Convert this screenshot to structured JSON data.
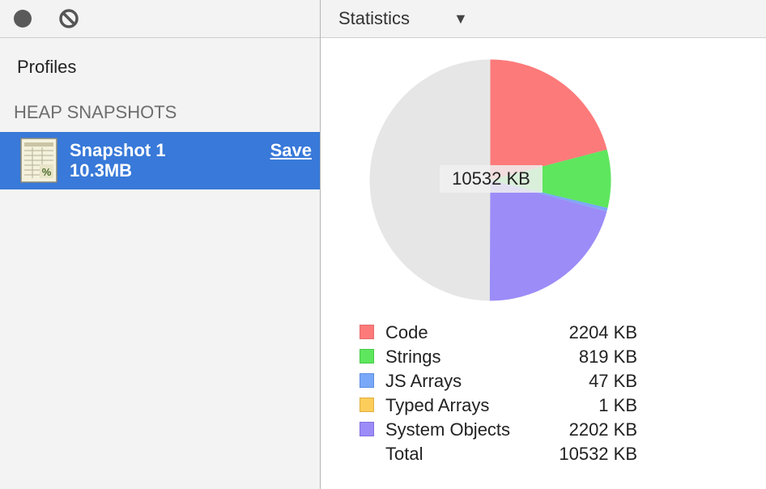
{
  "left_panel": {
    "profiles_title": "Profiles",
    "section_title": "HEAP SNAPSHOTS",
    "snapshot": {
      "name": "Snapshot 1",
      "size": "10.3MB",
      "save_label": "Save"
    },
    "selection_color": "#3879d9"
  },
  "right_panel": {
    "view_select": {
      "value": "Statistics",
      "icon": "chevron-down-icon"
    }
  },
  "chart_data": {
    "type": "pie",
    "center_label": "10532 KB",
    "total_value": 10532,
    "unit": "KB",
    "slices": [
      {
        "name": "Code",
        "value": 2204,
        "color": "#fd7a7a"
      },
      {
        "name": "Strings",
        "value": 819,
        "color": "#5ee65e"
      },
      {
        "name": "JS Arrays",
        "value": 47,
        "color": "#7aa8f8"
      },
      {
        "name": "Typed Arrays",
        "value": 1,
        "color": "#fccd5a"
      },
      {
        "name": "System Objects",
        "value": 2202,
        "color": "#9b8cf8"
      }
    ],
    "remainder_color": "#e6e6e6",
    "legend": [
      {
        "label": "Code",
        "value": "2204 KB",
        "color": "#fd7a7a",
        "border": "#e66a6a"
      },
      {
        "label": "Strings",
        "value": "819 KB",
        "color": "#5ee65e",
        "border": "#47c947"
      },
      {
        "label": "JS Arrays",
        "value": "47 KB",
        "color": "#7aa8f8",
        "border": "#5c8de2"
      },
      {
        "label": "Typed Arrays",
        "value": "1 KB",
        "color": "#fccd5a",
        "border": "#e0b040"
      },
      {
        "label": "System Objects",
        "value": "2202 KB",
        "color": "#9b8cf8",
        "border": "#7f6fe0"
      },
      {
        "label": "Total",
        "value": "10532 KB",
        "color": "",
        "border": ""
      }
    ]
  }
}
